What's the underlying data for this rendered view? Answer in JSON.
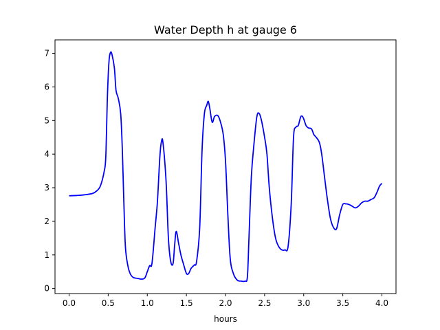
{
  "chart_data": {
    "type": "line",
    "title": "Water Depth h at gauge 6",
    "xlabel": "hours",
    "ylabel": "",
    "xlim": [
      -0.18,
      4.18
    ],
    "ylim": [
      -0.15,
      7.4
    ],
    "xticks": [
      0.0,
      0.5,
      1.0,
      1.5,
      2.0,
      2.5,
      3.0,
      3.5,
      4.0
    ],
    "xtick_labels": [
      "0.0",
      "0.5",
      "1.0",
      "1.5",
      "2.0",
      "2.5",
      "3.0",
      "3.5",
      "4.0"
    ],
    "yticks": [
      0,
      1,
      2,
      3,
      4,
      5,
      6,
      7
    ],
    "ytick_labels": [
      "0",
      "1",
      "2",
      "3",
      "4",
      "5",
      "6",
      "7"
    ],
    "grid": false,
    "legend": "none",
    "series": [
      {
        "color": "#0000ff",
        "x": [
          0.0,
          0.1,
          0.2,
          0.3,
          0.35,
          0.4,
          0.45,
          0.47,
          0.49,
          0.51,
          0.53,
          0.55,
          0.58,
          0.6,
          0.63,
          0.66,
          0.68,
          0.7,
          0.72,
          0.75,
          0.78,
          0.82,
          0.88,
          0.93,
          0.97,
          1.0,
          1.03,
          1.06,
          1.1,
          1.13,
          1.16,
          1.18,
          1.2,
          1.24,
          1.27,
          1.3,
          1.33,
          1.35,
          1.37,
          1.4,
          1.43,
          1.46,
          1.5,
          1.53,
          1.56,
          1.6,
          1.63,
          1.67,
          1.7,
          1.73,
          1.76,
          1.78,
          1.8,
          1.83,
          1.86,
          1.9,
          1.93,
          1.97,
          2.0,
          2.03,
          2.06,
          2.1,
          2.15,
          2.2,
          2.25,
          2.28,
          2.3,
          2.33,
          2.36,
          2.4,
          2.43,
          2.46,
          2.5,
          2.53,
          2.56,
          2.6,
          2.64,
          2.68,
          2.72,
          2.76,
          2.8,
          2.84,
          2.87,
          2.9,
          2.93,
          2.96,
          2.98,
          3.0,
          3.03,
          3.06,
          3.1,
          3.13,
          3.16,
          3.2,
          3.23,
          3.27,
          3.3,
          3.34,
          3.38,
          3.42,
          3.46,
          3.5,
          3.54,
          3.58,
          3.62,
          3.66,
          3.7,
          3.74,
          3.78,
          3.82,
          3.86,
          3.9,
          3.94,
          3.97,
          4.0
        ],
        "y": [
          2.76,
          2.77,
          2.79,
          2.83,
          2.9,
          3.05,
          3.5,
          3.95,
          5.7,
          6.75,
          7.03,
          6.95,
          6.55,
          5.9,
          5.65,
          5.2,
          4.2,
          2.6,
          1.25,
          0.7,
          0.45,
          0.33,
          0.3,
          0.28,
          0.32,
          0.5,
          0.68,
          0.75,
          1.8,
          2.6,
          3.9,
          4.36,
          4.35,
          3.2,
          1.5,
          0.8,
          0.75,
          1.3,
          1.7,
          1.35,
          1.0,
          0.75,
          0.45,
          0.45,
          0.6,
          0.7,
          0.8,
          1.8,
          4.1,
          5.2,
          5.45,
          5.57,
          5.35,
          4.95,
          5.12,
          5.15,
          5.0,
          4.6,
          3.8,
          2.2,
          0.9,
          0.45,
          0.25,
          0.22,
          0.22,
          0.35,
          1.5,
          3.3,
          4.2,
          5.1,
          5.21,
          5.0,
          4.5,
          4.0,
          3.0,
          2.1,
          1.5,
          1.25,
          1.15,
          1.15,
          1.25,
          2.5,
          4.5,
          4.8,
          4.85,
          5.1,
          5.13,
          5.05,
          4.85,
          4.78,
          4.75,
          4.58,
          4.5,
          4.35,
          4.0,
          3.25,
          2.7,
          2.1,
          1.82,
          1.78,
          2.2,
          2.5,
          2.52,
          2.5,
          2.45,
          2.4,
          2.45,
          2.55,
          2.6,
          2.6,
          2.65,
          2.7,
          2.88,
          3.05,
          3.13
        ]
      }
    ]
  }
}
